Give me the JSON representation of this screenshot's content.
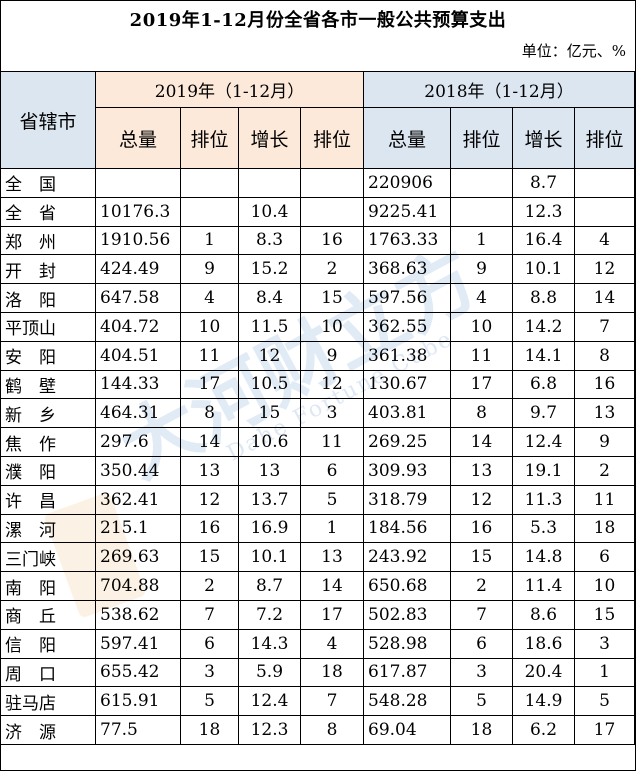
{
  "title": "2019年1-12月份全省各市一般公共预算支出",
  "unit": "单位：亿元、%",
  "watermark": {
    "main": "大河财立方",
    "sub": "Dahe Fortune Cube"
  },
  "columns": {
    "region": "省辖市",
    "group_2019": "2019年（1-12月）",
    "group_2018": "2018年（1-12月）",
    "total": "总量",
    "rank": "排位",
    "growth": "增长"
  },
  "rows": [
    {
      "name": "全　国",
      "t19": "",
      "r19": "",
      "g19": "",
      "gr19": "",
      "t18": "220906",
      "r18": "",
      "g18": "8.7",
      "gr18": ""
    },
    {
      "name": "全　省",
      "t19": "10176.3",
      "r19": "",
      "g19": "10.4",
      "gr19": "",
      "t18": "9225.41",
      "r18": "",
      "g18": "12.3",
      "gr18": ""
    },
    {
      "name": "郑　州",
      "t19": "1910.56",
      "r19": "1",
      "g19": "8.3",
      "gr19": "16",
      "t18": "1763.33",
      "r18": "1",
      "g18": "16.4",
      "gr18": "4"
    },
    {
      "name": "开　封",
      "t19": "424.49",
      "r19": "9",
      "g19": "15.2",
      "gr19": "2",
      "t18": "368.63",
      "r18": "9",
      "g18": "10.1",
      "gr18": "12"
    },
    {
      "name": "洛　阳",
      "t19": "647.58",
      "r19": "4",
      "g19": "8.4",
      "gr19": "15",
      "t18": "597.56",
      "r18": "4",
      "g18": "8.8",
      "gr18": "14"
    },
    {
      "name": "平顶山",
      "t19": "404.72",
      "r19": "10",
      "g19": "11.5",
      "gr19": "10",
      "t18": "362.55",
      "r18": "10",
      "g18": "14.2",
      "gr18": "7"
    },
    {
      "name": "安　阳",
      "t19": "404.51",
      "r19": "11",
      "g19": "12",
      "gr19": "9",
      "t18": "361.38",
      "r18": "11",
      "g18": "14.1",
      "gr18": "8"
    },
    {
      "name": "鹤　壁",
      "t19": "144.33",
      "r19": "17",
      "g19": "10.5",
      "gr19": "12",
      "t18": "130.67",
      "r18": "17",
      "g18": "6.8",
      "gr18": "16"
    },
    {
      "name": "新　乡",
      "t19": "464.31",
      "r19": "8",
      "g19": "15",
      "gr19": "3",
      "t18": "403.81",
      "r18": "8",
      "g18": "9.7",
      "gr18": "13"
    },
    {
      "name": "焦　作",
      "t19": "297.6",
      "r19": "14",
      "g19": "10.6",
      "gr19": "11",
      "t18": "269.25",
      "r18": "14",
      "g18": "12.4",
      "gr18": "9"
    },
    {
      "name": "濮　阳",
      "t19": "350.44",
      "r19": "13",
      "g19": "13",
      "gr19": "6",
      "t18": "309.93",
      "r18": "13",
      "g18": "19.1",
      "gr18": "2"
    },
    {
      "name": "许　昌",
      "t19": "362.41",
      "r19": "12",
      "g19": "13.7",
      "gr19": "5",
      "t18": "318.79",
      "r18": "12",
      "g18": "11.3",
      "gr18": "11"
    },
    {
      "name": "漯　河",
      "t19": "215.1",
      "r19": "16",
      "g19": "16.9",
      "gr19": "1",
      "t18": "184.56",
      "r18": "16",
      "g18": "5.3",
      "gr18": "18"
    },
    {
      "name": "三门峡",
      "t19": "269.63",
      "r19": "15",
      "g19": "10.1",
      "gr19": "13",
      "t18": "243.92",
      "r18": "15",
      "g18": "14.8",
      "gr18": "6"
    },
    {
      "name": "南　阳",
      "t19": "704.88",
      "r19": "2",
      "g19": "8.7",
      "gr19": "14",
      "t18": "650.68",
      "r18": "2",
      "g18": "11.4",
      "gr18": "10"
    },
    {
      "name": "商　丘",
      "t19": "538.62",
      "r19": "7",
      "g19": "7.2",
      "gr19": "17",
      "t18": "502.83",
      "r18": "7",
      "g18": "8.6",
      "gr18": "15"
    },
    {
      "name": "信　阳",
      "t19": "597.41",
      "r19": "6",
      "g19": "14.3",
      "gr19": "4",
      "t18": "528.98",
      "r18": "6",
      "g18": "18.6",
      "gr18": "3"
    },
    {
      "name": "周　口",
      "t19": "655.42",
      "r19": "3",
      "g19": "5.9",
      "gr19": "18",
      "t18": "617.87",
      "r18": "3",
      "g18": "20.4",
      "gr18": "1"
    },
    {
      "name": "驻马店",
      "t19": "615.91",
      "r19": "5",
      "g19": "12.4",
      "gr19": "7",
      "t18": "548.28",
      "r18": "5",
      "g18": "14.9",
      "gr18": "5"
    },
    {
      "name": "济　源",
      "t19": "77.5",
      "r19": "18",
      "g19": "12.3",
      "gr19": "8",
      "t18": "69.04",
      "r18": "18",
      "g18": "6.2",
      "gr18": "17"
    }
  ]
}
